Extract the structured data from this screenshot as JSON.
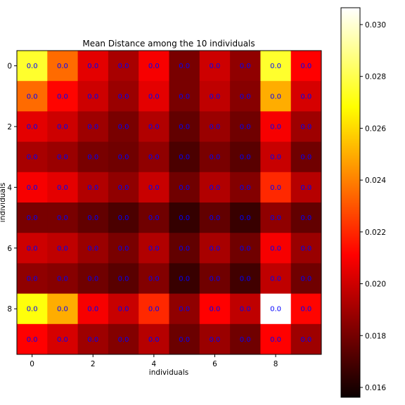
{
  "chart_data": {
    "type": "heatmap",
    "title": "Mean Distance among the 10 individuals",
    "xlabel": "individuals",
    "ylabel": "individuals",
    "x_ticks": [
      "0",
      "2",
      "4",
      "6",
      "8"
    ],
    "y_ticks": [
      "0",
      "2",
      "4",
      "6",
      "8"
    ],
    "cell_label": "0.0",
    "values": [
      [
        0.0275,
        0.0235,
        0.0203,
        0.019,
        0.0207,
        0.018,
        0.0198,
        0.0185,
        0.0275,
        0.021
      ],
      [
        0.0235,
        0.0212,
        0.0198,
        0.0187,
        0.0203,
        0.018,
        0.0195,
        0.0183,
        0.025,
        0.02
      ],
      [
        0.0203,
        0.0198,
        0.0188,
        0.018,
        0.0192,
        0.0175,
        0.0187,
        0.0178,
        0.0207,
        0.0188
      ],
      [
        0.019,
        0.0187,
        0.018,
        0.0178,
        0.0185,
        0.017,
        0.018,
        0.0173,
        0.0197,
        0.0178
      ],
      [
        0.0207,
        0.0203,
        0.0192,
        0.0185,
        0.0197,
        0.0178,
        0.0192,
        0.0182,
        0.022,
        0.0193
      ],
      [
        0.018,
        0.018,
        0.0175,
        0.017,
        0.0178,
        0.0165,
        0.0175,
        0.0166,
        0.0185,
        0.0175
      ],
      [
        0.0198,
        0.0195,
        0.0187,
        0.018,
        0.0192,
        0.0175,
        0.019,
        0.0178,
        0.0207,
        0.0187
      ],
      [
        0.0185,
        0.0183,
        0.0178,
        0.0173,
        0.0182,
        0.0166,
        0.0178,
        0.0168,
        0.0195,
        0.0178
      ],
      [
        0.027,
        0.025,
        0.0207,
        0.0197,
        0.022,
        0.0185,
        0.021,
        0.0195,
        0.0307,
        0.0212
      ],
      [
        0.021,
        0.02,
        0.0188,
        0.0182,
        0.0193,
        0.0177,
        0.0187,
        0.0178,
        0.021,
        0.0188
      ]
    ],
    "colormap": "hot",
    "colorbar": {
      "vmin": 0.01562,
      "vmax": 0.03065,
      "ticks": [
        "0.016",
        "0.018",
        "0.020",
        "0.022",
        "0.024",
        "0.026",
        "0.028",
        "0.030"
      ]
    }
  }
}
